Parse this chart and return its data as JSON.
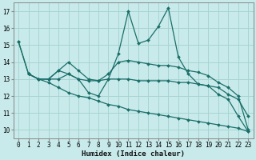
{
  "xlabel": "Humidex (Indice chaleur)",
  "ylabel": "",
  "bg_color": "#c8eaea",
  "grid_color": "#a8d4d2",
  "line_color": "#1a6e6a",
  "xlim": [
    -0.5,
    23.5
  ],
  "ylim": [
    9.5,
    17.5
  ],
  "yticks": [
    10,
    11,
    12,
    13,
    14,
    15,
    16,
    17
  ],
  "xticks": [
    0,
    1,
    2,
    3,
    4,
    5,
    6,
    7,
    8,
    9,
    10,
    11,
    12,
    13,
    14,
    15,
    16,
    17,
    18,
    19,
    20,
    21,
    22,
    23
  ],
  "lines": [
    {
      "x": [
        0,
        1,
        2,
        3,
        4,
        5,
        6,
        7,
        8,
        9,
        10,
        11,
        12,
        13,
        14,
        15,
        16,
        17,
        18,
        19,
        20,
        21,
        22,
        23
      ],
      "y": [
        15.2,
        13.3,
        13.0,
        13.0,
        13.5,
        13.3,
        13.0,
        12.2,
        12.0,
        13.0,
        14.5,
        17.0,
        15.1,
        15.3,
        16.1,
        17.2,
        14.3,
        13.3,
        12.7,
        12.6,
        12.1,
        11.8,
        10.8,
        9.9
      ]
    },
    {
      "x": [
        1,
        2,
        3,
        4,
        5,
        6,
        7,
        8,
        9,
        10,
        11,
        12,
        13,
        14,
        15,
        16,
        17,
        18,
        19,
        20,
        21,
        22,
        23
      ],
      "y": [
        13.3,
        13.0,
        13.0,
        13.5,
        14.0,
        13.5,
        13.0,
        12.9,
        13.3,
        14.0,
        14.1,
        14.0,
        13.9,
        13.8,
        13.8,
        13.7,
        13.5,
        13.4,
        13.2,
        12.8,
        12.5,
        12.0,
        10.0
      ]
    },
    {
      "x": [
        1,
        2,
        3,
        4,
        5,
        6,
        7,
        8,
        9,
        10,
        11,
        12,
        13,
        14,
        15,
        16,
        17,
        18,
        19,
        20,
        21,
        22,
        23
      ],
      "y": [
        13.3,
        13.0,
        13.0,
        13.0,
        13.3,
        13.0,
        12.9,
        12.9,
        13.0,
        13.0,
        13.0,
        12.9,
        12.9,
        12.9,
        12.9,
        12.8,
        12.8,
        12.7,
        12.6,
        12.5,
        12.1,
        11.8,
        10.8
      ]
    },
    {
      "x": [
        0,
        1,
        2,
        3,
        4,
        5,
        6,
        7,
        8,
        9,
        10,
        11,
        12,
        13,
        14,
        15,
        16,
        17,
        18,
        19,
        20,
        21,
        22,
        23
      ],
      "y": [
        15.2,
        13.3,
        13.0,
        12.8,
        12.5,
        12.2,
        12.0,
        11.9,
        11.7,
        11.5,
        11.4,
        11.2,
        11.1,
        11.0,
        10.9,
        10.8,
        10.7,
        10.6,
        10.5,
        10.4,
        10.3,
        10.2,
        10.1,
        9.9
      ]
    }
  ]
}
